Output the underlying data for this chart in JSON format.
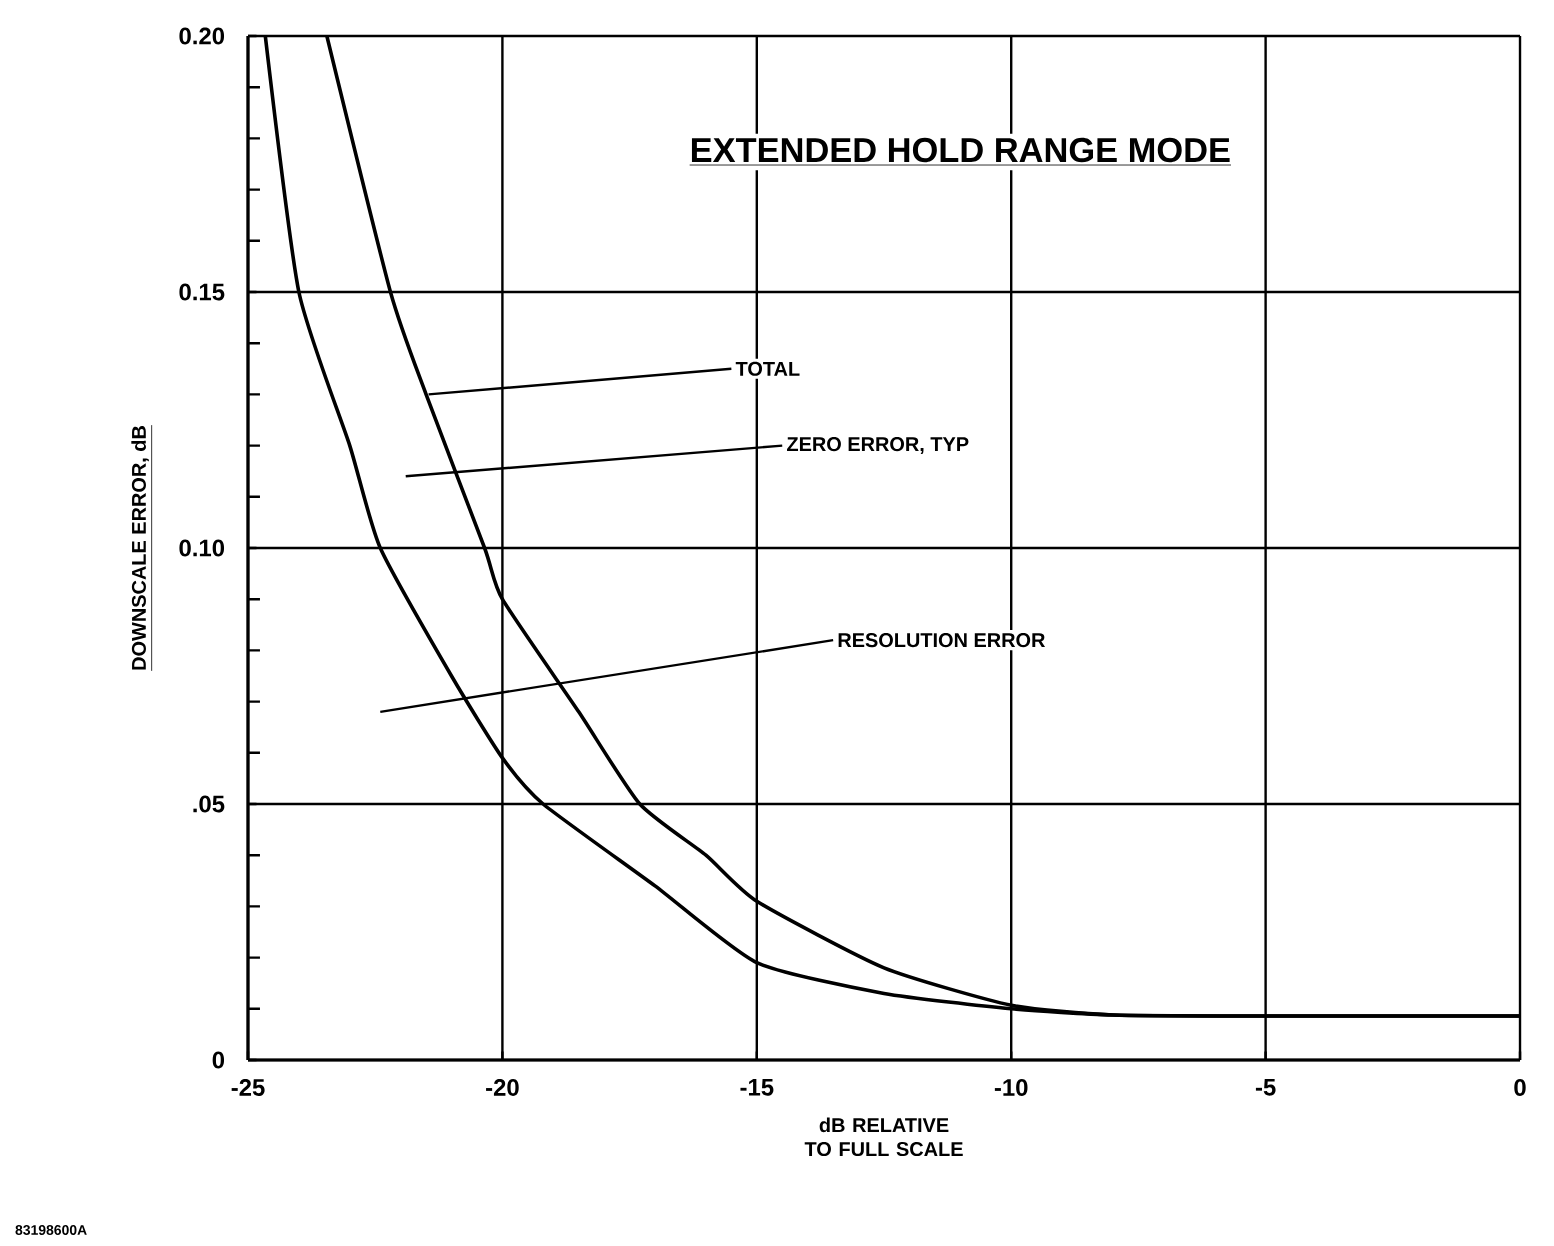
{
  "chart_data": {
    "type": "line",
    "title": "EXTENDED HOLD RANGE MODE",
    "xlabel": "dB RELATIVE TO FULL SCALE",
    "ylabel": "DOWNSCALE ERROR, dB",
    "xlim": [
      -25,
      0
    ],
    "ylim": [
      0,
      0.2
    ],
    "xticks": [
      -25,
      -20,
      -15,
      -10,
      -5,
      0
    ],
    "yticks": [
      {
        "value": 0,
        "label": "0"
      },
      {
        "value": 0.01,
        "label": null
      },
      {
        "value": 0.02,
        "label": null
      },
      {
        "value": 0.03,
        "label": null
      },
      {
        "value": 0.04,
        "label": null
      },
      {
        "value": 0.05,
        "label": ".05"
      },
      {
        "value": 0.06,
        "label": null
      },
      {
        "value": 0.07,
        "label": null
      },
      {
        "value": 0.08,
        "label": null
      },
      {
        "value": 0.09,
        "label": null
      },
      {
        "value": 0.1,
        "label": "0.10"
      },
      {
        "value": 0.11,
        "label": null
      },
      {
        "value": 0.12,
        "label": null
      },
      {
        "value": 0.13,
        "label": null
      },
      {
        "value": 0.14,
        "label": null
      },
      {
        "value": 0.15,
        "label": "0.15"
      },
      {
        "value": 0.16,
        "label": null
      },
      {
        "value": 0.17,
        "label": null
      },
      {
        "value": 0.18,
        "label": null
      },
      {
        "value": 0.19,
        "label": null
      },
      {
        "value": 0.2,
        "label": "0.20"
      }
    ],
    "grid": true,
    "marker": "none",
    "line_style": "solid",
    "series": [
      {
        "color": "#000000",
        "x": [
          -23.45,
          -22.2,
          -21.5,
          -20.35,
          -20,
          -18.5,
          -17.3,
          -16,
          -15,
          -12.5,
          -10,
          -8,
          -5,
          0
        ],
        "values": [
          0.2,
          0.15,
          0.13,
          0.1,
          0.09,
          0.068,
          0.05,
          0.04,
          0.031,
          0.018,
          0.0107,
          0.0088,
          0.0086,
          0.0086
        ]
      },
      {
        "color": "#000000",
        "x": [
          -24.66,
          -24,
          -23,
          -22.4,
          -21,
          -20,
          -19.2,
          -17,
          -15,
          -12.5,
          -10,
          -8,
          -5,
          0
        ],
        "values": [
          0.2,
          0.15,
          0.12,
          0.1,
          0.075,
          0.059,
          0.05,
          0.034,
          0.019,
          0.013,
          0.01,
          0.0088,
          0.0086,
          0.0086
        ]
      }
    ],
    "annotations": [
      {
        "text": "TOTAL",
        "x": -21.45,
        "y": 0.13
      },
      "ZERO ERROR, TYP",
      "RESOLUTION ERROR",
      "83198600A"
    ]
  }
}
